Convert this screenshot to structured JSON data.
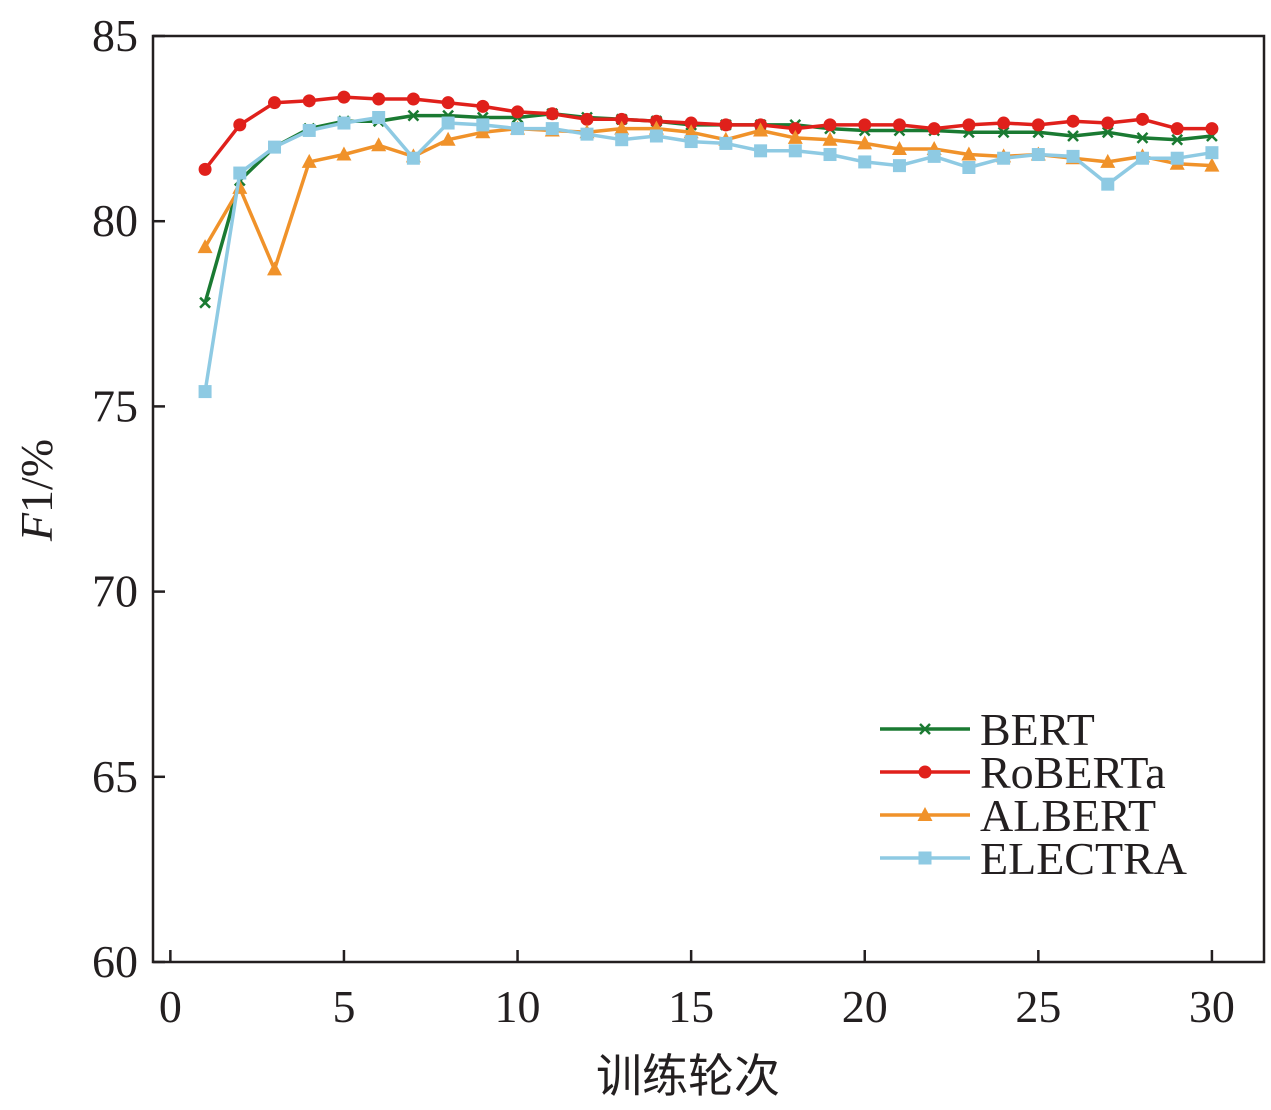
{
  "chart_data": {
    "type": "line",
    "xlabel": "训练轮次",
    "ylabel_italic": "F",
    "ylabel_rest": "1/%",
    "xlim": [
      -0.5,
      31.5
    ],
    "ylim": [
      60,
      85
    ],
    "xticks": [
      0,
      5,
      10,
      15,
      20,
      25,
      30
    ],
    "yticks": [
      60,
      65,
      70,
      75,
      80,
      85
    ],
    "grid": false,
    "legend_position": "bottom-right",
    "x": [
      1,
      2,
      3,
      4,
      5,
      6,
      7,
      8,
      9,
      10,
      11,
      12,
      13,
      14,
      15,
      16,
      17,
      18,
      19,
      20,
      21,
      22,
      23,
      24,
      25,
      26,
      27,
      28,
      29,
      30
    ],
    "series": [
      {
        "name": "BERT",
        "color": "#1a7a32",
        "marker": "x",
        "values": [
          77.8,
          81.1,
          82.0,
          82.5,
          82.7,
          82.7,
          82.85,
          82.85,
          82.8,
          82.8,
          82.9,
          82.8,
          82.75,
          82.7,
          82.6,
          82.6,
          82.6,
          82.6,
          82.5,
          82.45,
          82.45,
          82.45,
          82.4,
          82.4,
          82.4,
          82.3,
          82.4,
          82.25,
          82.2,
          82.3
        ]
      },
      {
        "name": "RoBERTa",
        "color": "#e0201b",
        "marker": "circle",
        "values": [
          81.4,
          82.6,
          83.2,
          83.25,
          83.35,
          83.3,
          83.3,
          83.2,
          83.1,
          82.95,
          82.9,
          82.75,
          82.75,
          82.7,
          82.65,
          82.6,
          82.6,
          82.5,
          82.6,
          82.6,
          82.6,
          82.5,
          82.6,
          82.65,
          82.6,
          82.7,
          82.65,
          82.75,
          82.5,
          82.5
        ]
      },
      {
        "name": "ALBERT",
        "color": "#f0922a",
        "marker": "triangle",
        "values": [
          79.3,
          80.9,
          78.7,
          81.6,
          81.8,
          82.05,
          81.75,
          82.2,
          82.4,
          82.5,
          82.45,
          82.4,
          82.5,
          82.5,
          82.4,
          82.2,
          82.45,
          82.25,
          82.2,
          82.1,
          81.95,
          81.95,
          81.8,
          81.75,
          81.8,
          81.7,
          81.6,
          81.75,
          81.55,
          81.5
        ]
      },
      {
        "name": "ELECTRA",
        "color": "#8ecae3",
        "marker": "square",
        "values": [
          75.4,
          81.3,
          82.0,
          82.45,
          82.65,
          82.8,
          81.7,
          82.65,
          82.6,
          82.5,
          82.5,
          82.35,
          82.2,
          82.3,
          82.15,
          82.1,
          81.9,
          81.9,
          81.8,
          81.6,
          81.5,
          81.75,
          81.45,
          81.7,
          81.8,
          81.75,
          81.0,
          81.7,
          81.7,
          81.85
        ]
      }
    ]
  }
}
